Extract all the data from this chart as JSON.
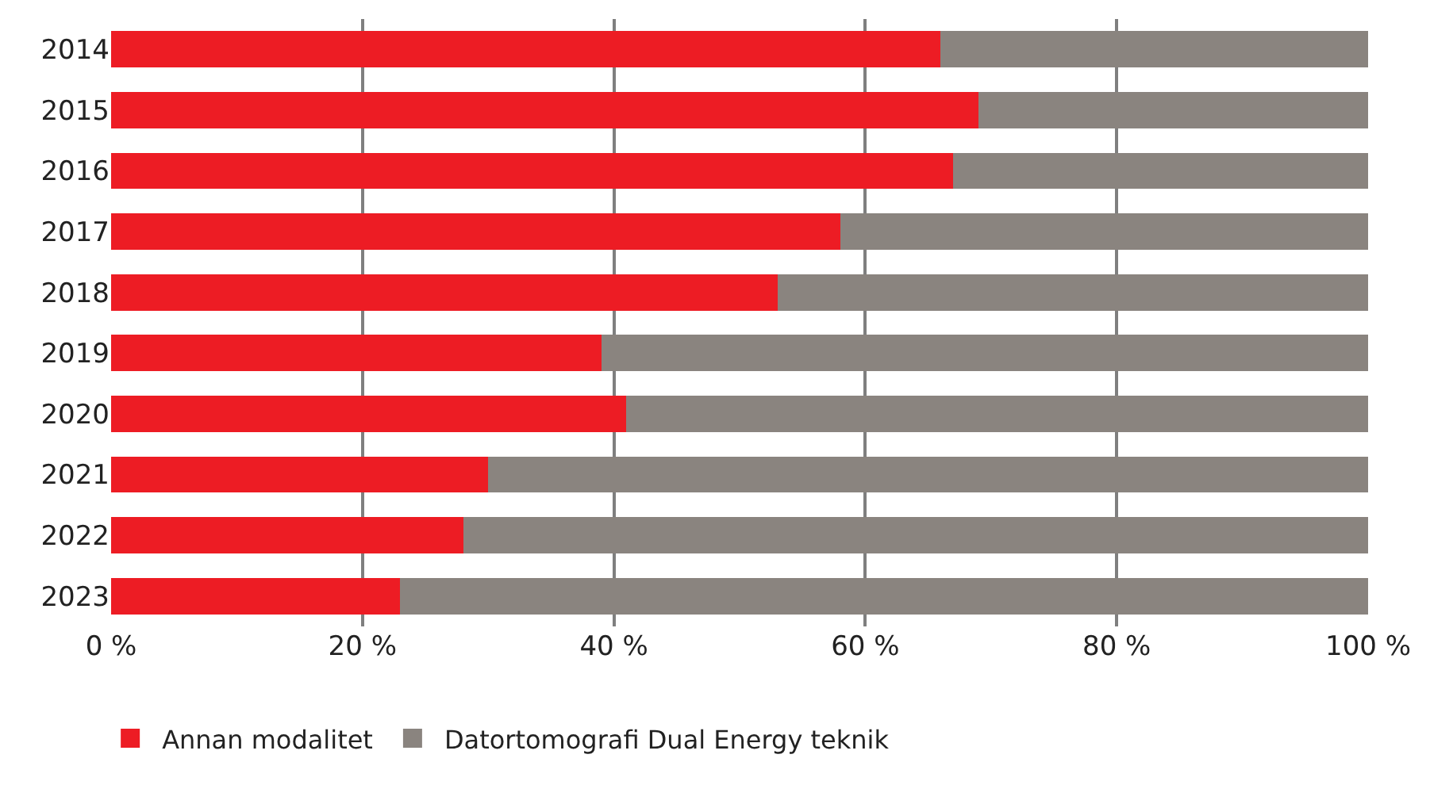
{
  "chart_data": {
    "type": "bar",
    "orientation": "horizontal",
    "stacked": true,
    "categories": [
      "2014",
      "2015",
      "2016",
      "2017",
      "2018",
      "2019",
      "2020",
      "2021",
      "2022",
      "2023"
    ],
    "series": [
      {
        "name": "Annan modalitet",
        "color": "#ed1c24",
        "values": [
          66,
          69,
          67,
          58,
          53,
          39,
          41,
          30,
          28,
          23
        ]
      },
      {
        "name": "Datortomografi Dual Energy teknik",
        "color": "#8a847f",
        "values": [
          34,
          31,
          33,
          42,
          47,
          61,
          59,
          70,
          72,
          77
        ]
      }
    ],
    "xlim": [
      0,
      100
    ],
    "xticks": [
      {
        "value": 0,
        "label": "0 %"
      },
      {
        "value": 20,
        "label": "20 %"
      },
      {
        "value": 40,
        "label": "40 %"
      },
      {
        "value": 60,
        "label": "60 %"
      },
      {
        "value": 80,
        "label": "80 %"
      },
      {
        "value": 100,
        "label": "100 %"
      }
    ],
    "grid": "x",
    "legend": "bottom left"
  }
}
